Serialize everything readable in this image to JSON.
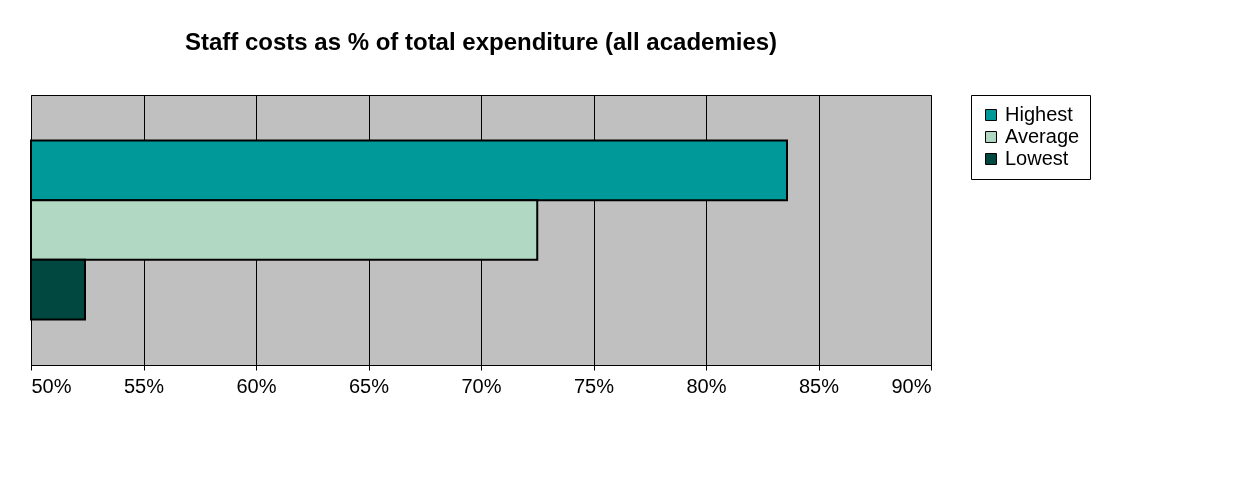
{
  "chart_data": {
    "type": "bar",
    "orientation": "horizontal",
    "title": "Staff costs as % of total expenditure (all academies)",
    "categories": [
      null
    ],
    "series": [
      {
        "name": "Highest",
        "color": "#009999",
        "values": [
          83.6
        ]
      },
      {
        "name": "Average",
        "color": "#b0d8c2",
        "values": [
          72.5
        ]
      },
      {
        "name": "Lowest",
        "color": "#004840",
        "values": [
          52.4
        ]
      }
    ],
    "xlim": [
      50,
      90
    ],
    "xticks": [
      {
        "value": 50,
        "label": "50%"
      },
      {
        "value": 55,
        "label": "55%"
      },
      {
        "value": 60,
        "label": "60%"
      },
      {
        "value": 65,
        "label": "65%"
      },
      {
        "value": 70,
        "label": "70%"
      },
      {
        "value": 75,
        "label": "75%"
      },
      {
        "value": 80,
        "label": "80%"
      },
      {
        "value": 85,
        "label": "85%"
      },
      {
        "value": 90,
        "label": "90%"
      }
    ],
    "grid": "x",
    "legend": "right"
  }
}
